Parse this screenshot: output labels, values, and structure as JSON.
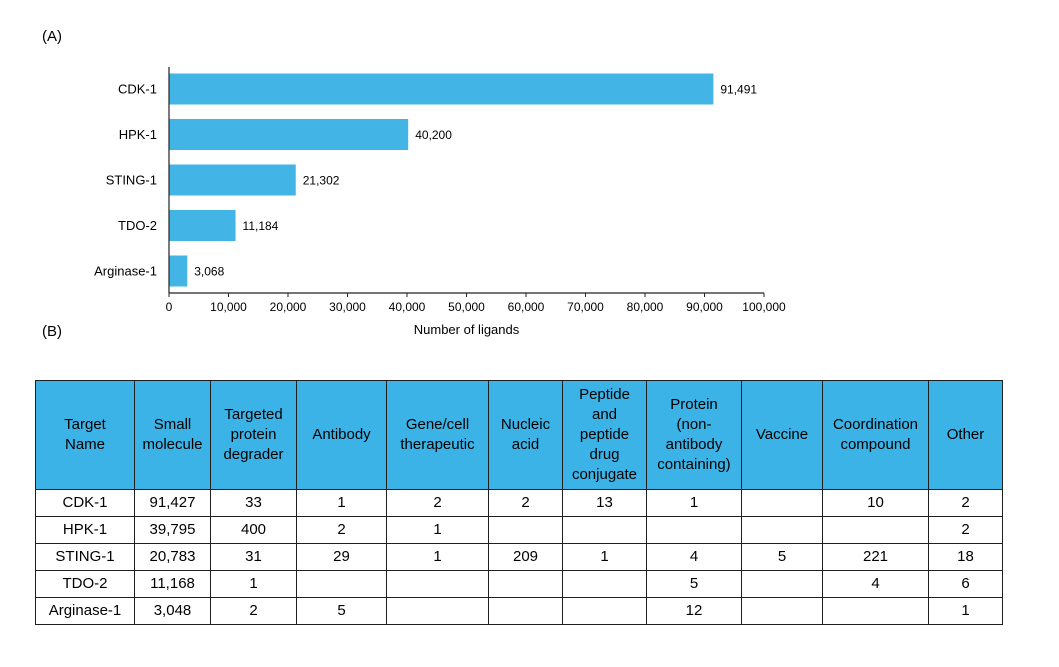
{
  "panel_a_label": "(A)",
  "panel_b_label": "(B)",
  "chart_data": {
    "type": "bar",
    "orientation": "horizontal",
    "categories": [
      "CDK-1",
      "HPK-1",
      "STING-1",
      "TDO-2",
      "Arginase-1"
    ],
    "values": [
      91491,
      40200,
      21302,
      11184,
      3068
    ],
    "value_labels": [
      "91,491",
      "40,200",
      "21,302",
      "11,184",
      "3,068"
    ],
    "xlabel": "Number of ligands",
    "xlim": [
      0,
      100000
    ],
    "xticks": [
      0,
      10000,
      20000,
      30000,
      40000,
      50000,
      60000,
      70000,
      80000,
      90000,
      100000
    ],
    "xtick_labels": [
      "0",
      "10,000",
      "20,000",
      "30,000",
      "40,000",
      "50,000",
      "60,000",
      "70,000",
      "80,000",
      "90,000",
      "100,000"
    ],
    "bar_color": "#42b4e6",
    "grid": false
  },
  "table": {
    "header_color": "#3cb3e6",
    "headers": [
      [
        "Target",
        "Name"
      ],
      [
        "Small",
        "molecule"
      ],
      [
        "Targeted",
        "protein",
        "degrader"
      ],
      [
        "Antibody"
      ],
      [
        "Gene/cell",
        "therapeutic"
      ],
      [
        "Nucleic",
        "acid"
      ],
      [
        "Peptide",
        "and",
        "peptide",
        "drug",
        "conjugate"
      ],
      [
        "Protein",
        "(non-",
        "antibody",
        "containing)"
      ],
      [
        "Vaccine"
      ],
      [
        "Coordination",
        "compound"
      ],
      [
        "Other"
      ]
    ],
    "rows": [
      [
        "CDK-1",
        "91,427",
        "33",
        "1",
        "2",
        "2",
        "13",
        "1",
        "",
        "10",
        "2"
      ],
      [
        "HPK-1",
        "39,795",
        "400",
        "2",
        "1",
        "",
        "",
        "",
        "",
        "",
        "2"
      ],
      [
        "STING-1",
        "20,783",
        "31",
        "29",
        "1",
        "209",
        "1",
        "4",
        "5",
        "221",
        "18"
      ],
      [
        "TDO-2",
        "11,168",
        "1",
        "",
        "",
        "",
        "",
        "5",
        "",
        "4",
        "6"
      ],
      [
        "Arginase-1",
        "3,048",
        "2",
        "5",
        "",
        "",
        "",
        "12",
        "",
        "",
        "1"
      ]
    ]
  }
}
